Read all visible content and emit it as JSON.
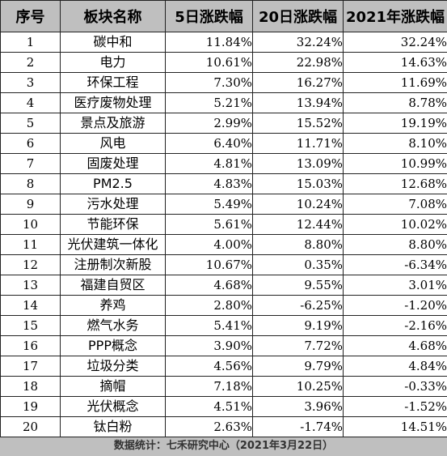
{
  "table": {
    "headers": [
      "序号",
      "板块名称",
      "5日涨跌幅",
      "20日涨跌幅",
      "2021年涨跌幅"
    ],
    "rows": [
      [
        "1",
        "碳中和",
        "11.84%",
        "32.24%",
        "32.24%"
      ],
      [
        "2",
        "电力",
        "10.61%",
        "22.98%",
        "14.63%"
      ],
      [
        "3",
        "环保工程",
        "7.30%",
        "16.27%",
        "11.69%"
      ],
      [
        "4",
        "医疗废物处理",
        "5.21%",
        "13.94%",
        "8.78%"
      ],
      [
        "5",
        "景点及旅游",
        "2.99%",
        "15.52%",
        "19.19%"
      ],
      [
        "6",
        "风电",
        "6.40%",
        "11.71%",
        "8.10%"
      ],
      [
        "7",
        "固废处理",
        "4.81%",
        "13.09%",
        "10.99%"
      ],
      [
        "8",
        "PM2.5",
        "4.83%",
        "15.03%",
        "12.68%"
      ],
      [
        "9",
        "污水处理",
        "5.49%",
        "10.24%",
        "7.08%"
      ],
      [
        "10",
        "节能环保",
        "5.61%",
        "12.44%",
        "10.02%"
      ],
      [
        "11",
        "光伏建筑一体化",
        "4.00%",
        "8.80%",
        "8.80%"
      ],
      [
        "12",
        "注册制次新股",
        "10.67%",
        "0.35%",
        "-6.34%"
      ],
      [
        "13",
        "福建自贸区",
        "4.68%",
        "9.55%",
        "3.01%"
      ],
      [
        "14",
        "养鸡",
        "2.80%",
        "-6.25%",
        "-1.20%"
      ],
      [
        "15",
        "燃气水务",
        "5.41%",
        "9.19%",
        "-2.16%"
      ],
      [
        "16",
        "PPP概念",
        "3.90%",
        "7.72%",
        "4.68%"
      ],
      [
        "17",
        "垃圾分类",
        "4.56%",
        "9.79%",
        "4.84%"
      ],
      [
        "18",
        "摘帽",
        "7.18%",
        "10.25%",
        "-0.33%"
      ],
      [
        "19",
        "光伏概念",
        "4.51%",
        "3.96%",
        "-1.52%"
      ],
      [
        "20",
        "钛白粉",
        "2.63%",
        "-1.74%",
        "14.51%"
      ]
    ]
  },
  "footer": {
    "text": "数据统计：七禾研究中心（2021年3月22日）"
  },
  "colors": {
    "header_bg": "#bfbfbf",
    "border": "#222222",
    "footer_bg": "#bfbfbf"
  }
}
